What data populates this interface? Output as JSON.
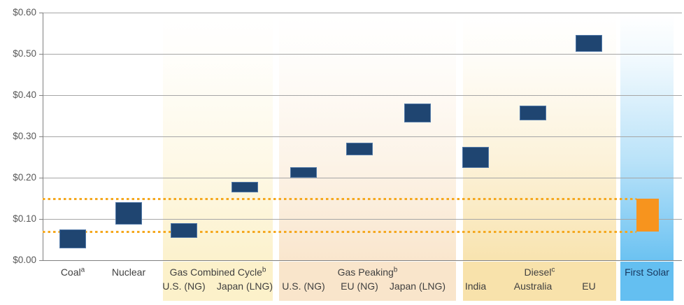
{
  "chart_data": {
    "type": "bar",
    "subtype": "floating-range-bars",
    "title": "",
    "xlabel": "",
    "ylabel": "",
    "grid": "horizontal",
    "legend": "none",
    "y_axis": {
      "min": 0.0,
      "max": 0.6,
      "tick_step": 0.1,
      "tick_labels": [
        "$0.00",
        "$0.10",
        "$0.20",
        "$0.30",
        "$0.40",
        "$0.50",
        "$0.60"
      ]
    },
    "thresholds": {
      "style": "dotted",
      "color": "#F5A81F",
      "values": [
        0.07,
        0.15
      ],
      "note_visible_only": "two orange dotted horizontal lines spanning chart up to the First Solar bar"
    },
    "bar_color_default": "#1F4571",
    "groups": [
      {
        "title": "Coal",
        "sup": "a",
        "band_color": null,
        "items": [
          {
            "label": "",
            "low": 0.03,
            "high": 0.075
          }
        ]
      },
      {
        "title": "Nuclear",
        "sup": "",
        "band_color": null,
        "items": [
          {
            "label": "",
            "low": 0.085,
            "high": 0.14
          }
        ]
      },
      {
        "title": "Gas Combined Cycle",
        "sup": "b",
        "band_color": "#FCF1CA",
        "items": [
          {
            "label": "U.S. (NG)",
            "low": 0.055,
            "high": 0.09
          },
          {
            "label": "Japan (LNG)",
            "low": 0.165,
            "high": 0.19
          }
        ]
      },
      {
        "title": "Gas Peaking",
        "sup": "b",
        "band_color": "#F9E5CB",
        "items": [
          {
            "label": "U.S. (NG)",
            "low": 0.2,
            "high": 0.225
          },
          {
            "label": "EU (NG)",
            "low": 0.255,
            "high": 0.285
          },
          {
            "label": "Japan (LNG)",
            "low": 0.335,
            "high": 0.38
          }
        ]
      },
      {
        "title": "Diesel",
        "sup": "c",
        "band_color": "#F8E2AB",
        "items": [
          {
            "label": "India",
            "low": 0.225,
            "high": 0.275
          },
          {
            "label": "Australia",
            "low": 0.34,
            "high": 0.375
          },
          {
            "label": "EU",
            "low": 0.505,
            "high": 0.545
          }
        ]
      },
      {
        "title": "First Solar",
        "sup": "",
        "band_color": "#64BFF1",
        "title_color": "#17365D",
        "items": [
          {
            "label": "",
            "low": 0.07,
            "high": 0.15,
            "color": "#F7941E"
          }
        ]
      }
    ],
    "colors": {
      "bar_navy": "#1F4571",
      "bar_orange": "#F7941E",
      "dotted_line": "#F5A81F",
      "gridline": "#A6A6A6",
      "axis": "#808080",
      "tick_text": "#595959",
      "category_text": "#3F3F3F",
      "first_solar_text": "#17365D"
    }
  }
}
